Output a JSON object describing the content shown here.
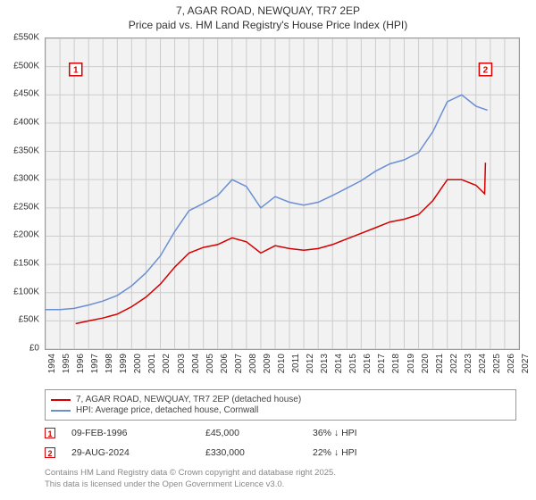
{
  "title": {
    "line1": "7, AGAR ROAD, NEWQUAY, TR7 2EP",
    "line2": "Price paid vs. HM Land Registry's House Price Index (HPI)"
  },
  "chart": {
    "type": "line",
    "background_color": "#f2f2f2",
    "grid_color": "#cccccc",
    "border_color": "#999999",
    "x_axis": {
      "min": 1994,
      "max": 2027,
      "ticks": [
        1994,
        1995,
        1996,
        1997,
        1998,
        1999,
        2000,
        2001,
        2002,
        2003,
        2004,
        2005,
        2006,
        2007,
        2008,
        2009,
        2010,
        2011,
        2012,
        2013,
        2014,
        2015,
        2016,
        2017,
        2018,
        2019,
        2020,
        2021,
        2022,
        2023,
        2024,
        2025,
        2026,
        2027
      ],
      "label_fontsize": 10
    },
    "y_axis": {
      "min": 0,
      "max": 550000,
      "ticks": [
        0,
        50000,
        100000,
        150000,
        200000,
        250000,
        300000,
        350000,
        400000,
        450000,
        500000,
        550000
      ],
      "tick_labels": [
        "£0",
        "£50K",
        "£100K",
        "£150K",
        "£200K",
        "£250K",
        "£300K",
        "£350K",
        "£400K",
        "£450K",
        "£500K",
        "£550K"
      ],
      "label_fontsize": 10
    },
    "series": [
      {
        "name": "7, AGAR ROAD, NEWQUAY, TR7 2EP (detached house)",
        "color": "#d40000",
        "line_width": 1.5,
        "points": [
          [
            1996.1,
            45000
          ],
          [
            1997,
            50000
          ],
          [
            1998,
            55000
          ],
          [
            1999,
            62000
          ],
          [
            2000,
            75000
          ],
          [
            2001,
            92000
          ],
          [
            2002,
            115000
          ],
          [
            2003,
            145000
          ],
          [
            2004,
            170000
          ],
          [
            2005,
            180000
          ],
          [
            2006,
            185000
          ],
          [
            2007,
            197000
          ],
          [
            2008,
            190000
          ],
          [
            2009,
            170000
          ],
          [
            2010,
            183000
          ],
          [
            2011,
            178000
          ],
          [
            2012,
            175000
          ],
          [
            2013,
            178000
          ],
          [
            2014,
            185000
          ],
          [
            2015,
            195000
          ],
          [
            2016,
            205000
          ],
          [
            2017,
            215000
          ],
          [
            2018,
            225000
          ],
          [
            2019,
            230000
          ],
          [
            2020,
            238000
          ],
          [
            2021,
            263000
          ],
          [
            2022,
            300000
          ],
          [
            2023,
            300000
          ],
          [
            2024,
            290000
          ],
          [
            2024.6,
            275000
          ],
          [
            2024.66,
            330000
          ]
        ]
      },
      {
        "name": "HPI: Average price, detached house, Cornwall",
        "color": "#6a8fd4",
        "line_width": 1.5,
        "points": [
          [
            1994,
            70000
          ],
          [
            1995,
            70000
          ],
          [
            1996,
            72000
          ],
          [
            1997,
            78000
          ],
          [
            1998,
            85000
          ],
          [
            1999,
            95000
          ],
          [
            2000,
            112000
          ],
          [
            2001,
            135000
          ],
          [
            2002,
            165000
          ],
          [
            2003,
            208000
          ],
          [
            2004,
            245000
          ],
          [
            2005,
            258000
          ],
          [
            2006,
            272000
          ],
          [
            2007,
            300000
          ],
          [
            2008,
            288000
          ],
          [
            2009,
            250000
          ],
          [
            2010,
            270000
          ],
          [
            2011,
            260000
          ],
          [
            2012,
            255000
          ],
          [
            2013,
            260000
          ],
          [
            2014,
            272000
          ],
          [
            2015,
            285000
          ],
          [
            2016,
            298000
          ],
          [
            2017,
            315000
          ],
          [
            2018,
            328000
          ],
          [
            2019,
            335000
          ],
          [
            2020,
            348000
          ],
          [
            2021,
            385000
          ],
          [
            2022,
            438000
          ],
          [
            2023,
            450000
          ],
          [
            2024,
            430000
          ],
          [
            2024.8,
            423000
          ]
        ]
      }
    ],
    "markers": [
      {
        "n": "1",
        "x": 1996.1,
        "y": 495000,
        "color": "#d40000"
      },
      {
        "n": "2",
        "x": 2024.66,
        "y": 495000,
        "color": "#d40000"
      }
    ]
  },
  "legend": {
    "items": [
      {
        "label": "7, AGAR ROAD, NEWQUAY, TR7 2EP (detached house)",
        "color": "#d40000"
      },
      {
        "label": "HPI: Average price, detached house, Cornwall",
        "color": "#6a8fd4"
      }
    ]
  },
  "data_points": [
    {
      "n": "1",
      "color": "#d40000",
      "date": "09-FEB-1996",
      "price": "£45,000",
      "diff": "36% ↓ HPI"
    },
    {
      "n": "2",
      "color": "#d40000",
      "date": "29-AUG-2024",
      "price": "£330,000",
      "diff": "22% ↓ HPI"
    }
  ],
  "attribution": {
    "line1": "Contains HM Land Registry data © Crown copyright and database right 2025.",
    "line2": "This data is licensed under the Open Government Licence v3.0."
  }
}
